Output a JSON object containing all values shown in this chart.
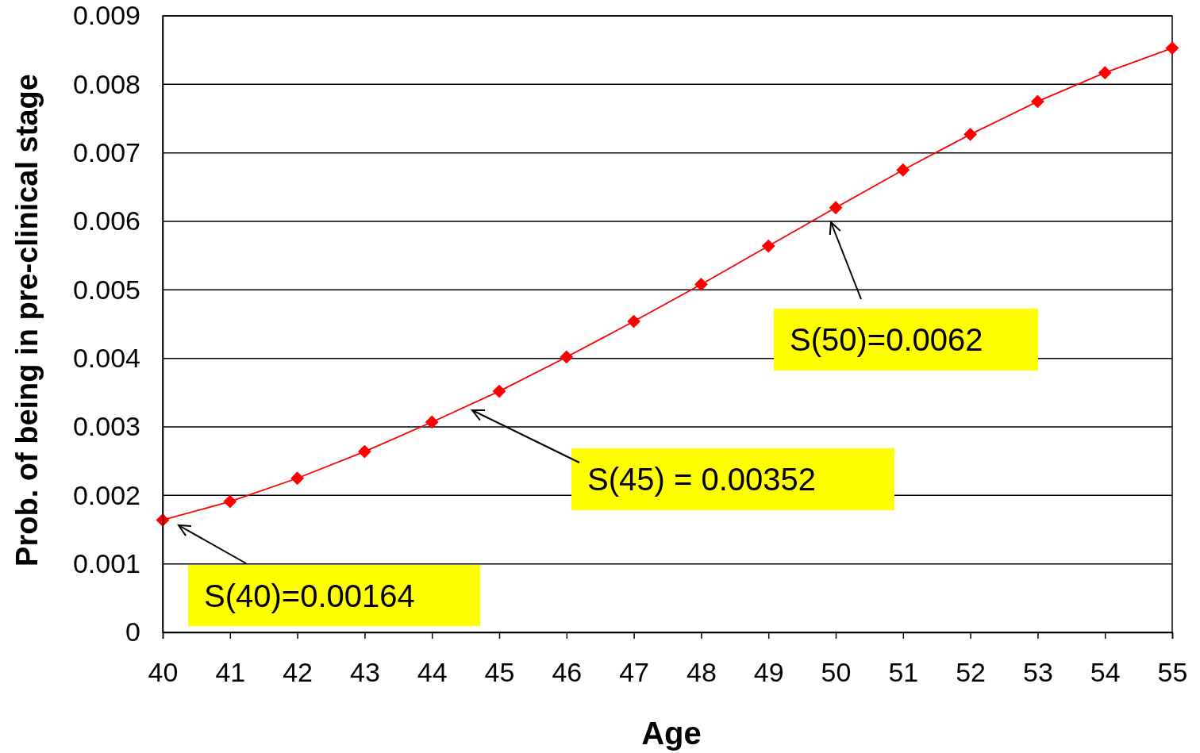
{
  "chart_data": {
    "type": "line",
    "xlabel": "Age",
    "ylabel": "Prob. of being in pre-clinical stage",
    "x": [
      40,
      41,
      42,
      43,
      44,
      45,
      46,
      47,
      48,
      49,
      50,
      51,
      52,
      53,
      54,
      55
    ],
    "series": [
      {
        "color": "#ff0000",
        "values": [
          0.00164,
          0.00191,
          0.00225,
          0.00264,
          0.00307,
          0.00352,
          0.00402,
          0.00454,
          0.00508,
          0.00564,
          0.0062,
          0.00675,
          0.00727,
          0.00775,
          0.00817,
          0.00853
        ]
      }
    ],
    "xlim": [
      40,
      55
    ],
    "xticks": [
      40,
      41,
      42,
      43,
      44,
      45,
      46,
      47,
      48,
      49,
      50,
      51,
      52,
      53,
      54,
      55
    ],
    "ylim": [
      0,
      0.009
    ],
    "yticks": [
      0,
      0.001,
      0.002,
      0.003,
      0.004,
      0.005,
      0.006,
      0.007,
      0.008,
      0.009
    ],
    "grid": "y",
    "marker": "diamond",
    "line_style": "solid",
    "annotations": [
      "S(40)=0.00164",
      "S(45) = 0.00352",
      "S(50)=0.0062"
    ]
  }
}
